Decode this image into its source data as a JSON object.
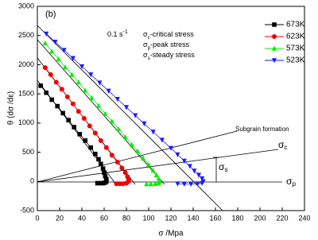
{
  "chart_data": {
    "type": "scatter",
    "xlabel": "σ /Mpa",
    "ylabel": "θ (dσ /dε)",
    "xlim": [
      0,
      240
    ],
    "xticks": [
      0,
      20,
      40,
      60,
      80,
      100,
      120,
      140,
      160,
      180,
      200,
      220,
      240
    ],
    "ylim": [
      -500,
      3000
    ],
    "yticks": [
      -500,
      0,
      500,
      1000,
      1500,
      2000,
      2500,
      3000
    ],
    "legend": "top-right",
    "annotations": {
      "panel": "(b)",
      "rate": {
        "text": "0.1 s",
        "sup": "-1"
      },
      "notes": [
        {
          "symbol": "σ",
          "sub": "c",
          "text": "-critical stress"
        },
        {
          "symbol": "σ",
          "sub": "p",
          "text": "-peak stress"
        },
        {
          "symbol": "σ",
          "sub": "s",
          "text": "-steady stress"
        }
      ],
      "subgrain": "Subgrain formation",
      "labels": [
        {
          "symbol": "σ",
          "sub": "c"
        },
        {
          "symbol": "σ",
          "sub": "s"
        },
        {
          "symbol": "σ",
          "sub": "p"
        }
      ]
    },
    "series": [
      {
        "name": "673K",
        "color": "#000000",
        "marker": "square",
        "x": [
          3,
          8,
          13,
          18,
          23,
          28,
          33,
          38,
          43,
          48,
          52,
          55,
          57,
          59,
          60,
          61,
          62,
          62,
          61,
          59,
          57,
          54
        ],
        "values": [
          1640,
          1520,
          1400,
          1290,
          1170,
          1050,
          930,
          810,
          700,
          580,
          470,
          380,
          300,
          220,
          150,
          90,
          40,
          0,
          -20,
          -30,
          -30,
          -30
        ]
      },
      {
        "name": "623K",
        "color": "#ee0000",
        "marker": "circle",
        "x": [
          7,
          12,
          17,
          22,
          27,
          32,
          37,
          42,
          47,
          52,
          57,
          62,
          67,
          72,
          76,
          79,
          81,
          82,
          82,
          80,
          77,
          74,
          71
        ],
        "values": [
          1950,
          1830,
          1700,
          1580,
          1450,
          1330,
          1200,
          1080,
          950,
          830,
          700,
          580,
          450,
          330,
          230,
          150,
          80,
          30,
          0,
          -30,
          -40,
          -40,
          -40
        ]
      },
      {
        "name": "573K",
        "color": "#00ee00",
        "marker": "triangle-up",
        "x": [
          7,
          13,
          19,
          25,
          31,
          37,
          43,
          49,
          55,
          61,
          67,
          73,
          79,
          85,
          90,
          95,
          100,
          104,
          107,
          109,
          110,
          109,
          106,
          102,
          98
        ],
        "values": [
          2370,
          2230,
          2100,
          1960,
          1830,
          1700,
          1560,
          1430,
          1300,
          1160,
          1030,
          900,
          760,
          630,
          520,
          400,
          290,
          190,
          110,
          50,
          0,
          -30,
          -40,
          -45,
          -45
        ]
      },
      {
        "name": "523K",
        "color": "#1a1aff",
        "marker": "triangle-down",
        "x": [
          8,
          16,
          24,
          32,
          40,
          48,
          56,
          64,
          72,
          80,
          88,
          96,
          104,
          112,
          120,
          126,
          132,
          137,
          141,
          145,
          148,
          149,
          148,
          144,
          138,
          132,
          126
        ],
        "values": [
          2530,
          2390,
          2250,
          2110,
          1970,
          1830,
          1690,
          1550,
          1410,
          1270,
          1130,
          990,
          850,
          710,
          570,
          460,
          350,
          260,
          180,
          110,
          50,
          0,
          -30,
          -40,
          -45,
          -45,
          -40
        ]
      }
    ]
  }
}
